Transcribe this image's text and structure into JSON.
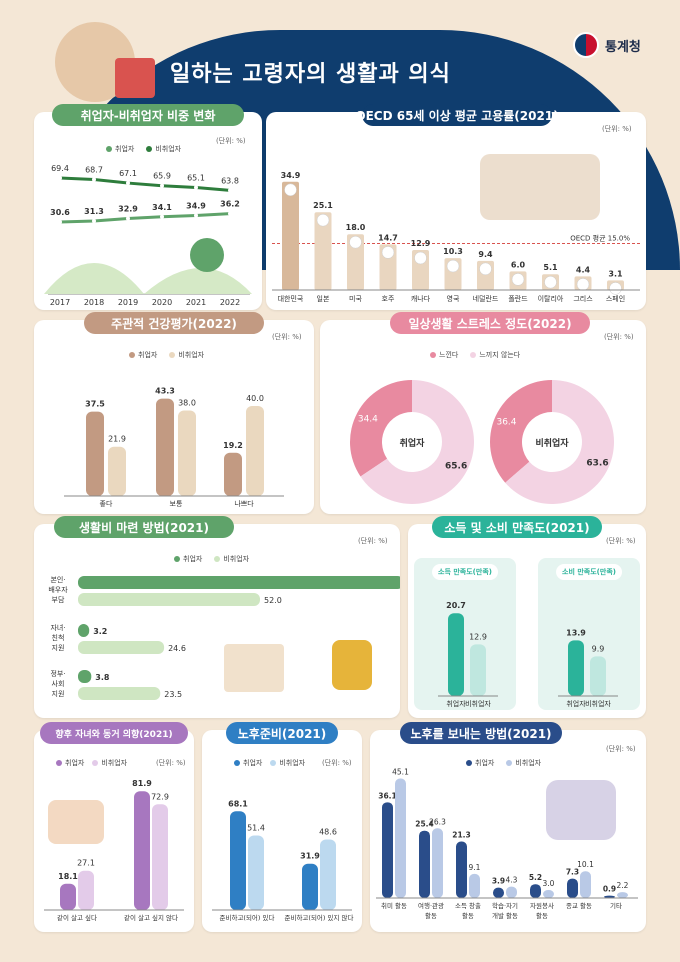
{
  "header": {
    "title": "일하는 고령자의 생활과 의식",
    "org": "통계청"
  },
  "colors": {
    "navy": "#0f3d6e",
    "green": "#5fa36a",
    "green_light": "#cfe6c2",
    "tan": "#c29a82",
    "tan_light": "#ead8bf",
    "pink": "#e88aa0",
    "pink_light": "#f3d3e3",
    "teal": "#2bb39a",
    "teal_light": "#bfe7df",
    "blue": "#2f7fc4",
    "blue_light": "#bcd9ef",
    "purple": "#a777bf",
    "purple_light": "#e3cbe9",
    "darkblue": "#2a4d8a",
    "darkblue_light": "#b9c9e6"
  },
  "sections": {
    "employ_ratio": {
      "title": "취업자-비취업자 비중 변화",
      "unit": "(단위: %)",
      "legend": [
        "취업자",
        "비취업자"
      ]
    },
    "oecd": {
      "title": "OECD 65세 이상 평균 고용률(2021)",
      "unit": "(단위: %)",
      "avg_label": "OECD 평균 15.0%"
    },
    "health": {
      "title": "주관적 건강평가(2022)",
      "unit": "(단위: %)",
      "legend": [
        "취업자",
        "비취업자"
      ]
    },
    "stress": {
      "title": "일상생활 스트레스 정도(2022)",
      "unit": "(단위: %)",
      "legend": [
        "느낀다",
        "느끼지 않는다"
      ]
    },
    "living": {
      "title": "생활비 마련 방법(2021)",
      "unit": "(단위: %)",
      "legend": [
        "취업자",
        "비취업자"
      ]
    },
    "satisfaction": {
      "title": "소득 및 소비 만족도(2021)",
      "unit": "(단위: %)",
      "income_label": "소득 만족도(만족)",
      "consume_label": "소비 만족도(만족)"
    },
    "cohabit": {
      "title": "향후 자녀와 동거 의향(2021)",
      "unit": "(단위: %)",
      "legend": [
        "취업자",
        "비취업자"
      ]
    },
    "retire": {
      "title": "노후준비(2021)",
      "unit": "(단위: %)",
      "legend": [
        "취업자",
        "비취업자"
      ]
    },
    "oldage": {
      "title": "노후를 보내는 방법(2021)",
      "unit": "(단위: %)",
      "legend": [
        "취업자",
        "비취업자"
      ]
    }
  },
  "chart_data": [
    {
      "id": "employ_ratio",
      "type": "line",
      "x": [
        "2017",
        "2018",
        "2019",
        "2020",
        "2021",
        "2022"
      ],
      "series": [
        {
          "name": "취업자",
          "values": [
            30.6,
            31.3,
            32.9,
            34.1,
            34.9,
            36.2
          ]
        },
        {
          "name": "비취업자",
          "values": [
            69.4,
            68.7,
            67.1,
            65.9,
            65.1,
            63.8
          ]
        }
      ]
    },
    {
      "id": "oecd",
      "type": "bar",
      "categories": [
        "대한민국",
        "일본",
        "미국",
        "호주",
        "캐나다",
        "영국",
        "네덜란드",
        "폴란드",
        "이탈리아",
        "그리스",
        "스페인"
      ],
      "values": [
        34.9,
        25.1,
        18.0,
        14.7,
        12.9,
        10.3,
        9.4,
        6.0,
        5.1,
        4.4,
        3.1
      ],
      "reference_line": 15.0
    },
    {
      "id": "health",
      "type": "bar",
      "categories": [
        "좋다",
        "보통",
        "나쁘다"
      ],
      "series": [
        {
          "name": "취업자",
          "values": [
            37.5,
            43.3,
            19.2
          ]
        },
        {
          "name": "비취업자",
          "values": [
            21.9,
            38.0,
            40.0
          ]
        }
      ]
    },
    {
      "id": "stress",
      "type": "pie",
      "charts": [
        {
          "label": "취업자",
          "values": [
            34.4,
            65.6
          ]
        },
        {
          "label": "비취업자",
          "values": [
            36.4,
            63.6
          ]
        }
      ],
      "categories": [
        "느낀다",
        "느끼지 않는다"
      ]
    },
    {
      "id": "living",
      "type": "bar",
      "orientation": "horizontal",
      "categories": [
        [
          "본인·",
          "배우자",
          "부담"
        ],
        [
          "자녀·",
          "친척",
          "지원"
        ],
        [
          "정부·",
          "사회",
          "지원"
        ]
      ],
      "series": [
        {
          "name": "취업자",
          "values": [
            93.0,
            3.2,
            3.8
          ]
        },
        {
          "name": "비취업자",
          "values": [
            52.0,
            24.6,
            23.5
          ]
        }
      ]
    },
    {
      "id": "satisfaction",
      "type": "bar",
      "groups": [
        {
          "label": "소득 만족도(만족)",
          "categories": [
            "취업자",
            "비취업자"
          ],
          "values": [
            20.7,
            12.9
          ]
        },
        {
          "label": "소비 만족도(만족)",
          "categories": [
            "취업자",
            "비취업자"
          ],
          "values": [
            13.9,
            9.9
          ]
        }
      ]
    },
    {
      "id": "cohabit",
      "type": "bar",
      "categories": [
        "같이 살고 싶다",
        "같이 살고 싶지 않다"
      ],
      "series": [
        {
          "name": "취업자",
          "values": [
            18.1,
            81.9
          ]
        },
        {
          "name": "비취업자",
          "values": [
            27.1,
            72.9
          ]
        }
      ]
    },
    {
      "id": "retire",
      "type": "bar",
      "categories": [
        "준비하고(되어) 있다",
        "준비하고(되어) 있지 않다"
      ],
      "series": [
        {
          "name": "취업자",
          "values": [
            68.1,
            31.9
          ]
        },
        {
          "name": "비취업자",
          "values": [
            51.4,
            48.6
          ]
        }
      ]
    },
    {
      "id": "oldage",
      "type": "bar",
      "categories": [
        [
          "취미 활동"
        ],
        [
          "여행·관광",
          "활동"
        ],
        [
          "소득 창출",
          "활동"
        ],
        [
          "학습·자기",
          "개발 활동"
        ],
        [
          "자원봉사",
          "활동"
        ],
        [
          "종교 활동"
        ],
        [
          "기타"
        ]
      ],
      "series": [
        {
          "name": "취업자",
          "values": [
            36.1,
            25.4,
            21.3,
            3.9,
            5.2,
            7.3,
            0.9
          ]
        },
        {
          "name": "비취업자",
          "values": [
            45.1,
            26.3,
            9.1,
            4.3,
            3.0,
            10.1,
            2.2
          ]
        }
      ]
    }
  ]
}
